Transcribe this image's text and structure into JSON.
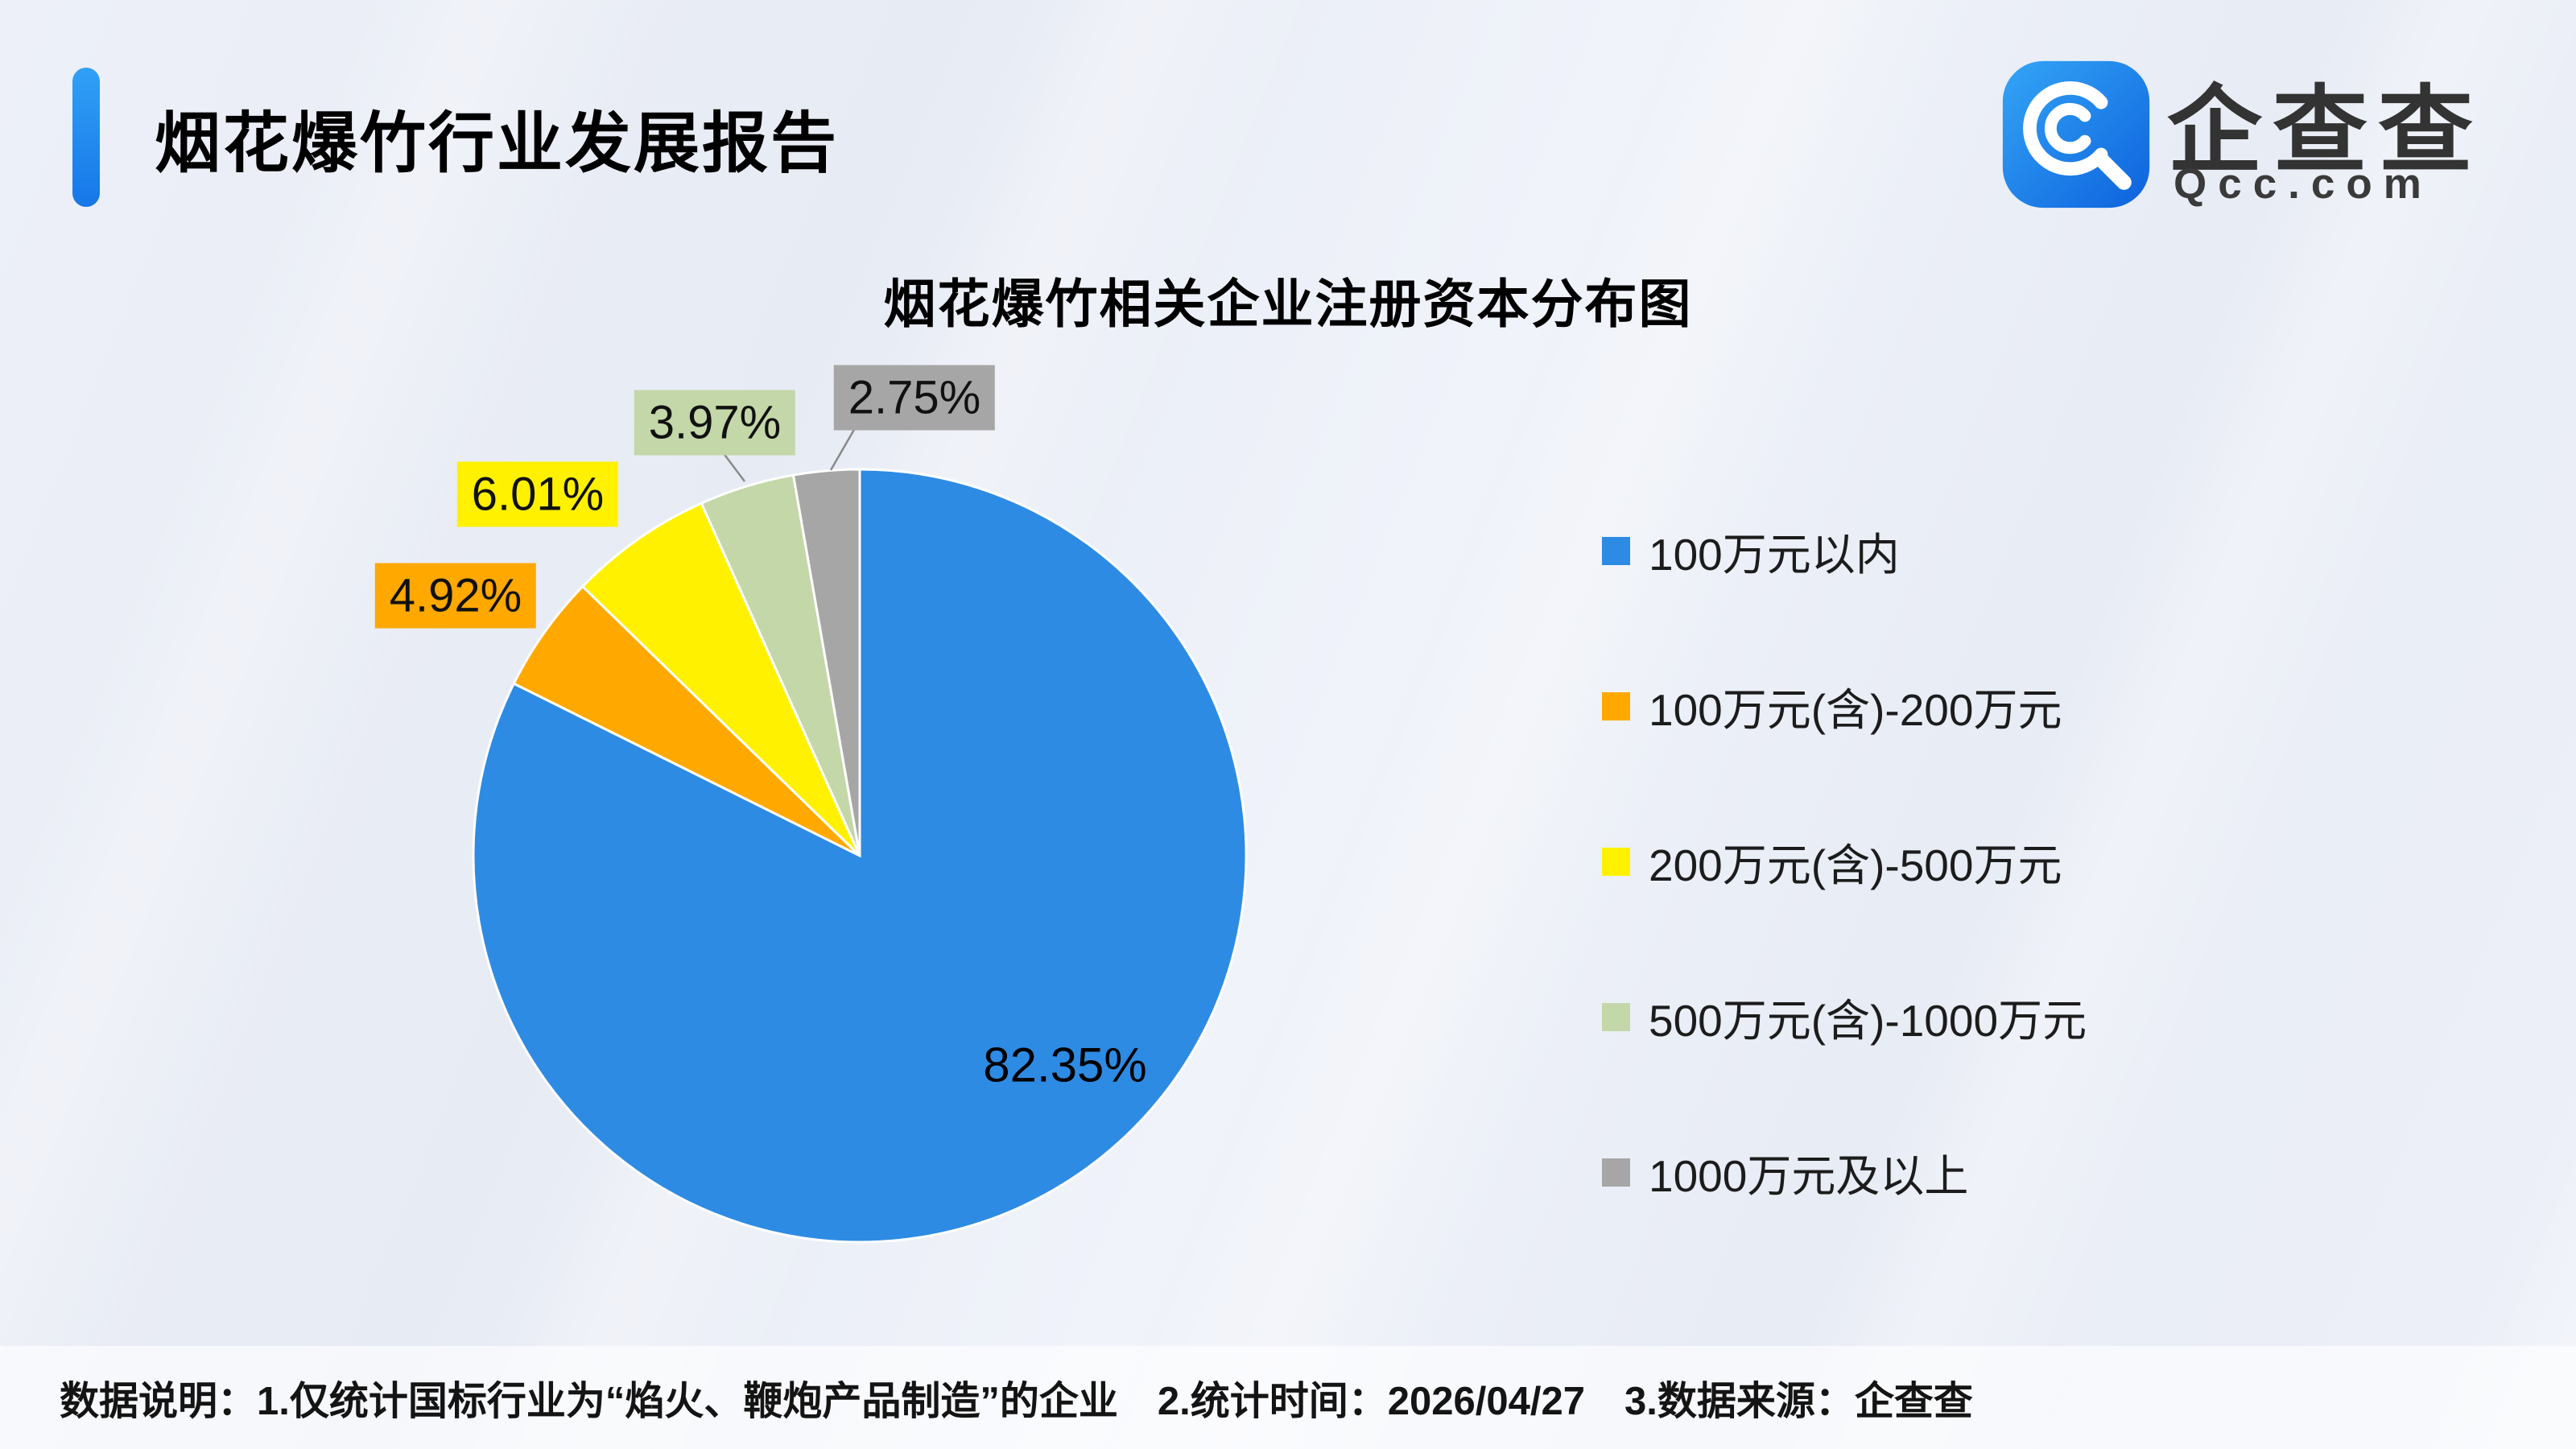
{
  "page": {
    "report_title": "烟花爆竹行业发展报告",
    "brand": {
      "name": "企查查",
      "domain": "Qcc.com",
      "accent_color": "#1677e8"
    },
    "footer": "数据说明：1.仅统计国标行业为“焰火、鞭炮产品制造”的企业　2.统计时间：2026/04/27　3.数据来源：企查查"
  },
  "chart_data": {
    "type": "pie",
    "title": "烟花爆竹相关企业注册资本分布图",
    "unit": "%",
    "start_angle_deg": 0,
    "direction": "clockwise",
    "legend_position": "right",
    "slices": [
      {
        "label": "100万元以内",
        "value": 82.35,
        "label_text": "82.35%",
        "color": "#2e8be4",
        "label_placement": "inside"
      },
      {
        "label": "100万元(含)-200万元",
        "value": 4.92,
        "label_text": "4.92%",
        "color": "#ffa800",
        "label_placement": "outside"
      },
      {
        "label": "200万元(含)-500万元",
        "value": 6.01,
        "label_text": "6.01%",
        "color": "#fff100",
        "label_placement": "outside"
      },
      {
        "label": "500万元(含)-1000万元",
        "value": 3.97,
        "label_text": "3.97%",
        "color": "#c4d7a9",
        "label_placement": "outside"
      },
      {
        "label": "1000万元及以上",
        "value": 2.75,
        "label_text": "2.75%",
        "color": "#a6a6a6",
        "label_placement": "outside"
      }
    ]
  }
}
